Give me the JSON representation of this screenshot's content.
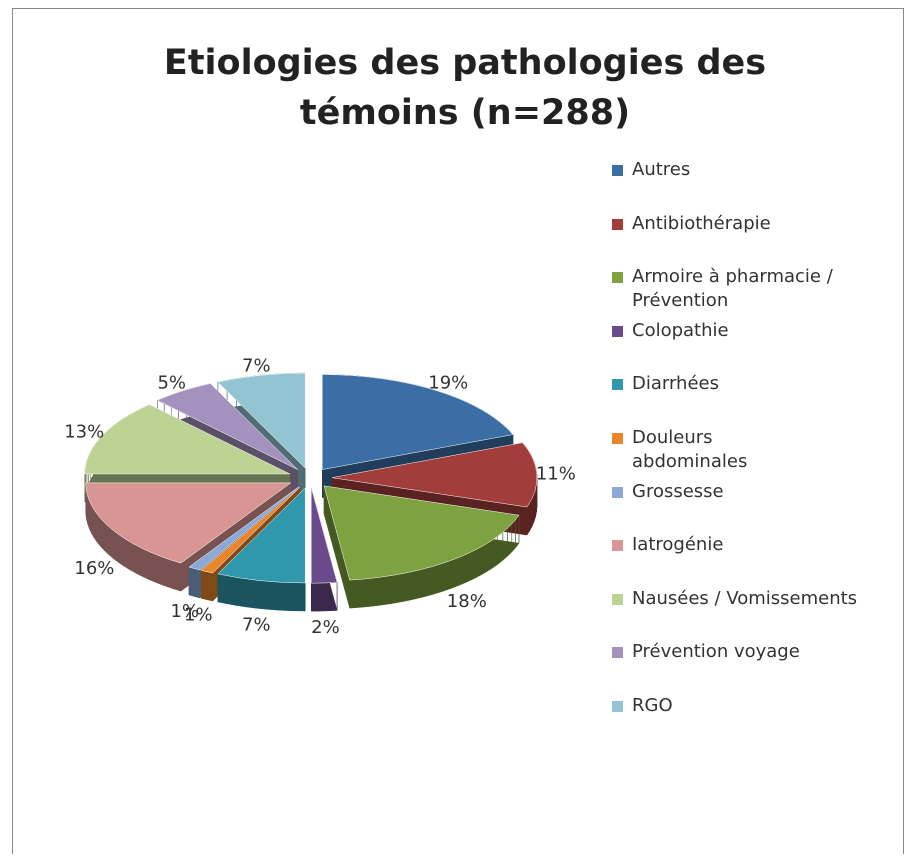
{
  "chart_data": {
    "type": "pie",
    "title": "Etiologies des pathologies des témoins (n=288)",
    "categories": [
      "Autres",
      "Antibiothérapie",
      "Armoire à pharmacie / Prévention",
      "Colopathie",
      "Diarrhées",
      "Douleurs abdominales",
      "Grossesse",
      "Iatrogénie",
      "Nausées / Vomissements",
      "Prévention voyage",
      "RGO"
    ],
    "values": [
      19,
      11,
      18,
      2,
      7,
      1,
      1,
      16,
      13,
      5,
      7
    ],
    "value_labels": [
      "19%",
      "11%",
      "18%",
      "2%",
      "7%",
      "1%",
      "1%",
      "16%",
      "13%",
      "5%",
      "7%"
    ],
    "colors": [
      "#3a6ea5",
      "#a33d3b",
      "#7ea23f",
      "#6b4a8c",
      "#2f98ad",
      "#e9852a",
      "#8aa9d6",
      "#d99593",
      "#bcd393",
      "#a392bd",
      "#93c4d3"
    ],
    "legend": "right"
  }
}
